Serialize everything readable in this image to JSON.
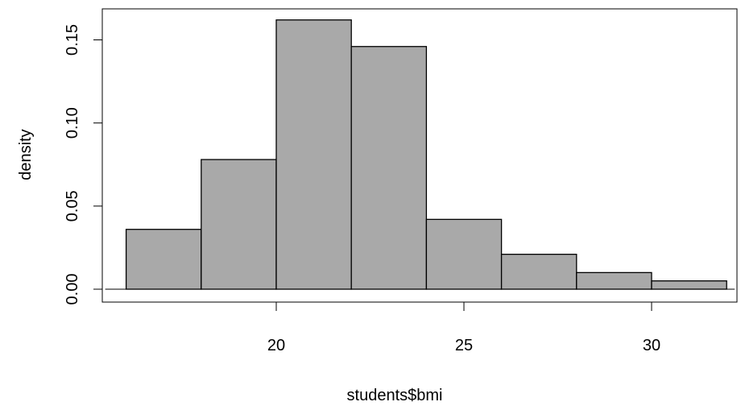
{
  "chart_data": {
    "type": "bar",
    "subtype": "histogram",
    "xlabel": "students$bmi",
    "ylabel": "density",
    "title": "",
    "xlim": [
      16,
      32
    ],
    "ylim": [
      0,
      0.16
    ],
    "x_ticks": [
      20,
      25,
      30
    ],
    "y_ticks": [
      0.0,
      0.05,
      0.1,
      0.15
    ],
    "x_tick_labels": [
      "20",
      "25",
      "30"
    ],
    "y_tick_labels": [
      "0.00",
      "0.05",
      "0.10",
      "0.15"
    ],
    "bins": [
      {
        "start": 16,
        "end": 18,
        "density": 0.036
      },
      {
        "start": 18,
        "end": 20,
        "density": 0.078
      },
      {
        "start": 20,
        "end": 22,
        "density": 0.162
      },
      {
        "start": 22,
        "end": 24,
        "density": 0.146
      },
      {
        "start": 24,
        "end": 26,
        "density": 0.042
      },
      {
        "start": 26,
        "end": 28,
        "density": 0.021
      },
      {
        "start": 28,
        "end": 30,
        "density": 0.01
      },
      {
        "start": 30,
        "end": 32,
        "density": 0.005
      }
    ],
    "bar_color": "#a9a9a9",
    "bar_edge_color": "#000000",
    "grid": false,
    "legend": "none"
  }
}
